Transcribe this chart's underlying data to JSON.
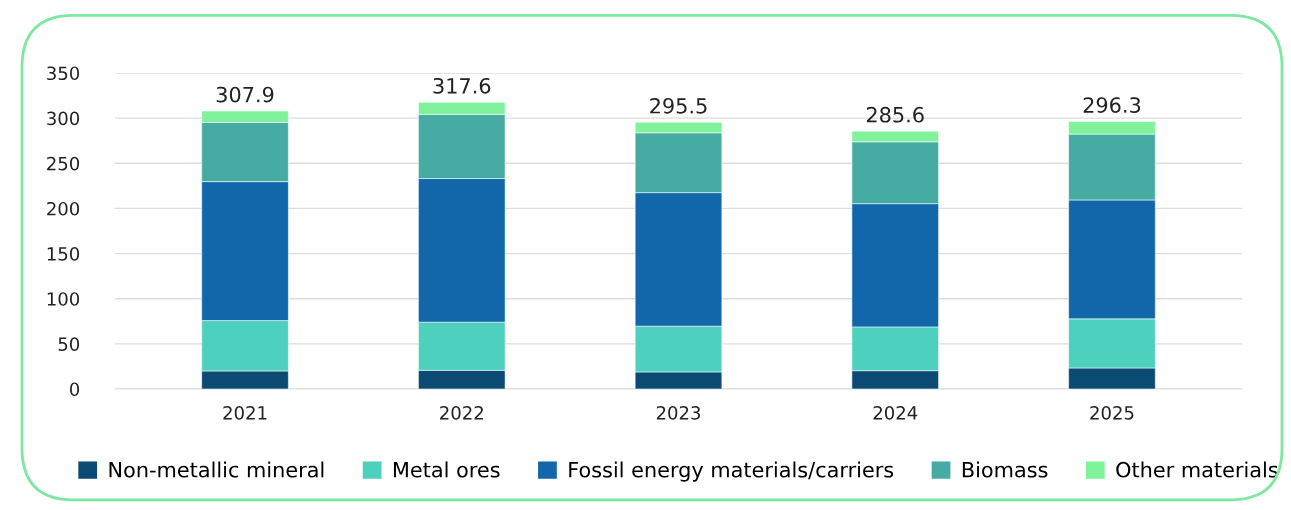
{
  "chart_data": {
    "type": "bar",
    "stacked": true,
    "categories": [
      "2021",
      "2022",
      "2023",
      "2024",
      "2025"
    ],
    "series": [
      {
        "name": "Non-metallic mineral",
        "color": "#0b4a72",
        "values": [
          20.0,
          20.7,
          18.9,
          20.3,
          23.3
        ]
      },
      {
        "name": "Metal ores",
        "color": "#4dd0be",
        "values": [
          55.8,
          53.3,
          50.7,
          48.5,
          54.4
        ]
      },
      {
        "name": "Fossil energy materials/carriers",
        "color": "#1167aa",
        "values": [
          153.9,
          159.1,
          147.9,
          136.5,
          131.7
        ]
      },
      {
        "name": "Biomass",
        "color": "#46aca3",
        "values": [
          65.5,
          71.0,
          66.3,
          68.5,
          72.9
        ]
      },
      {
        "name": "Other materials",
        "color": "#80f29c",
        "values": [
          12.7,
          13.5,
          11.7,
          11.8,
          14.0
        ]
      }
    ],
    "totals": [
      "307.9",
      "317.6",
      "295.5",
      "285.6",
      "296.3"
    ],
    "ylim": [
      0,
      350
    ],
    "yticks": [
      0,
      50,
      100,
      150,
      200,
      250,
      300,
      350
    ],
    "grid": "y",
    "legend": "bottom"
  }
}
